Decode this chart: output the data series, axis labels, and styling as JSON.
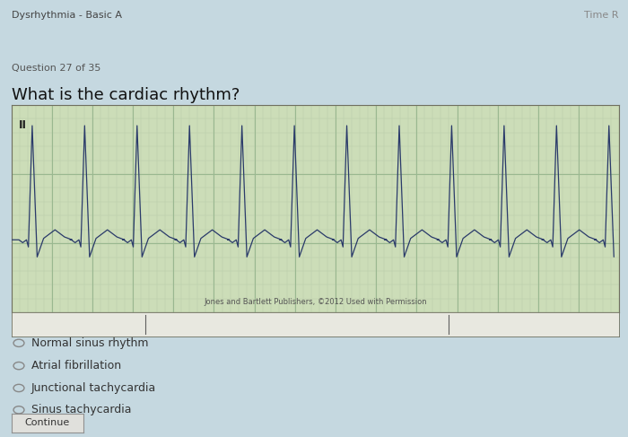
{
  "bg_color": "#c5d8e0",
  "title_text": "Dysrhythmia - Basic A",
  "time_text": "Time R",
  "question_num": "Question 27 of 35",
  "question": "What is the cardiac rhythm?",
  "ecg_bg": "#ccddb8",
  "ecg_grid_minor": "#b8cca8",
  "ecg_grid_major": "#9ab890",
  "ecg_line_color": "#2a3a6a",
  "ecg_label": "II",
  "ecg_caption": "Jones and Bartlett Publishers, ©2012 Used with Permission",
  "options": [
    "Normal sinus rhythm",
    "Atrial fibrillation",
    "Junctional tachycardia",
    "Sinus tachycardia"
  ],
  "button_text": "Continue",
  "answer_fontsize": 9,
  "question_fontsize": 13,
  "header_fontsize": 8,
  "subheader_fontsize": 8
}
